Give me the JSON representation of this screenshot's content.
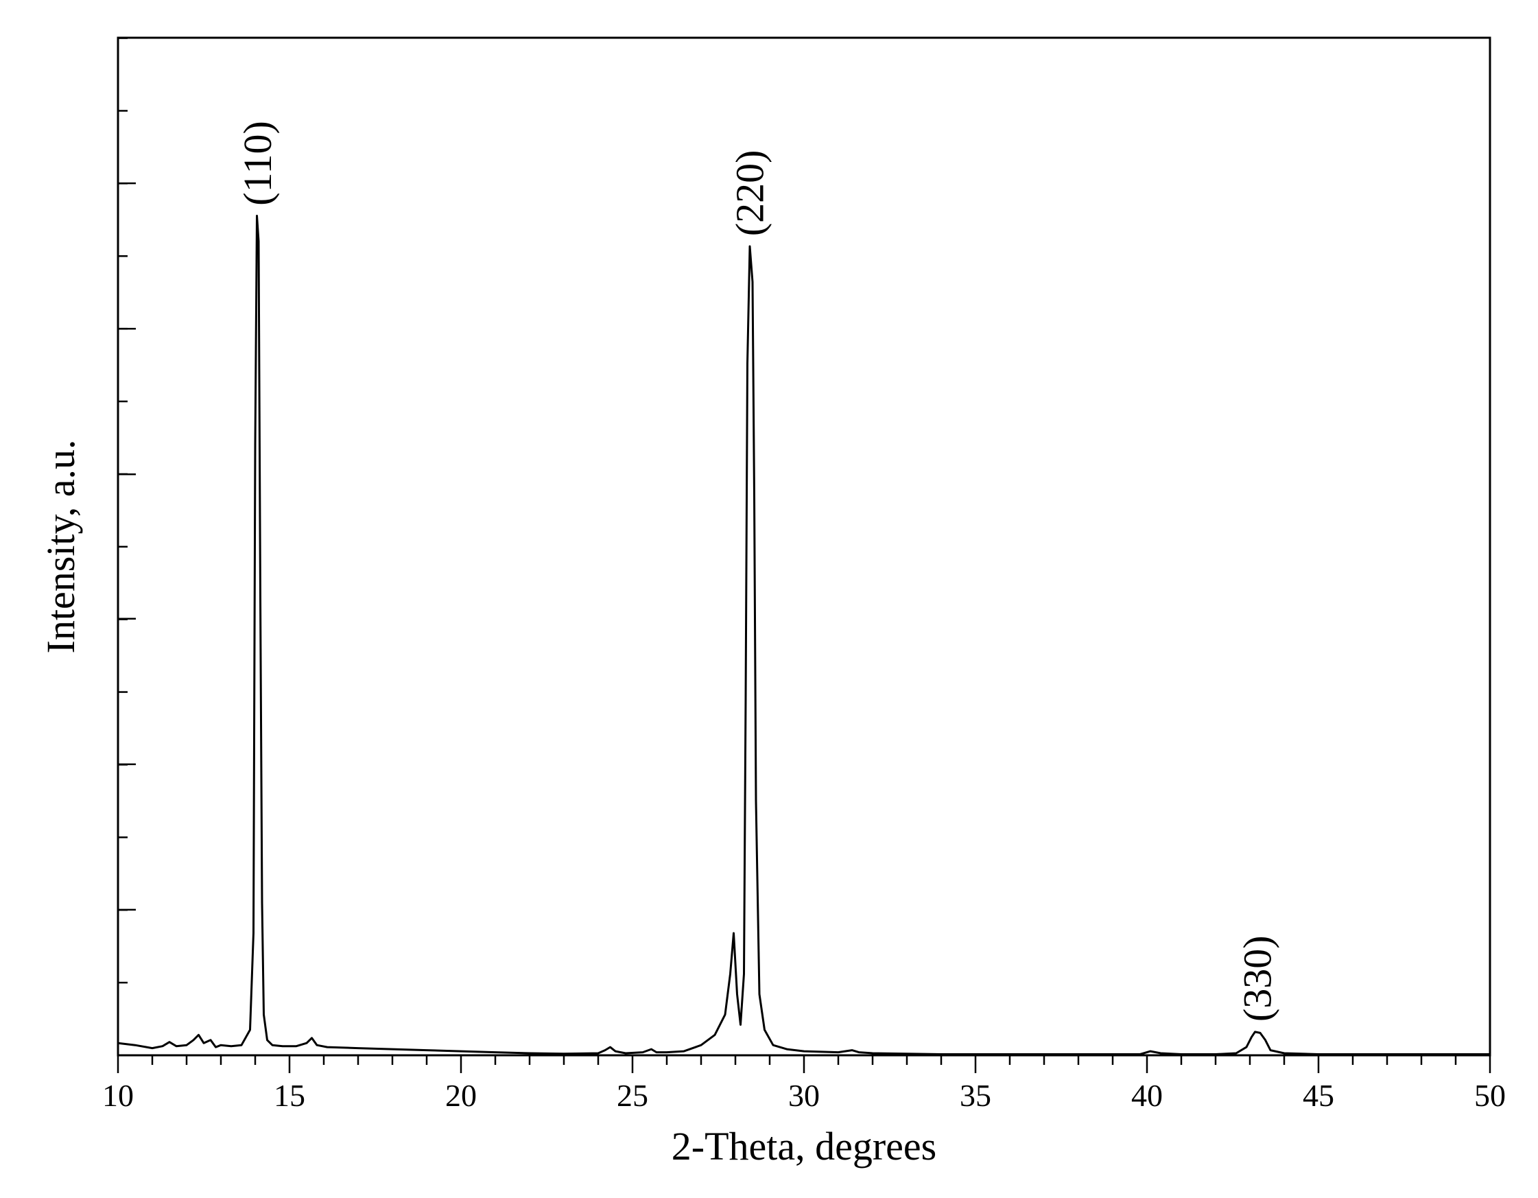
{
  "chart_data": {
    "type": "line",
    "xlabel": "2-Theta, degrees",
    "ylabel": "Intensity, a.u.",
    "xlim": [
      10,
      50
    ],
    "ylim": [
      0,
      100
    ],
    "x_ticks": [
      10,
      15,
      20,
      25,
      30,
      35,
      40,
      45,
      50
    ],
    "x_tick_labels": [
      "10",
      "15",
      "20",
      "25",
      "30",
      "35",
      "40",
      "45",
      "50"
    ],
    "x_minor_step": 1,
    "y_ticks_major": [
      14.3,
      28.6,
      42.9,
      57.1,
      71.4,
      85.7
    ],
    "y_ticks_minor_step": 7.14,
    "grid": false,
    "series": [
      {
        "x": [
          10.0,
          10.5,
          11.0,
          11.3,
          11.5,
          11.7,
          12.0,
          12.2,
          12.35,
          12.5,
          12.7,
          12.85,
          13.0,
          13.3,
          13.6,
          13.85,
          13.95,
          14.0,
          14.05,
          14.1,
          14.15,
          14.2,
          14.25,
          14.35,
          14.5,
          14.8,
          15.2,
          15.5,
          15.65,
          15.8,
          16.1,
          17.0,
          18.0,
          19.0,
          20.0,
          21.0,
          22.0,
          23.0,
          24.0,
          24.2,
          24.35,
          24.5,
          24.8,
          25.3,
          25.55,
          25.7,
          26.0,
          26.5,
          27.0,
          27.4,
          27.7,
          27.85,
          27.95,
          28.05,
          28.15,
          28.25,
          28.3,
          28.35,
          28.42,
          28.5,
          28.55,
          28.6,
          28.7,
          28.85,
          29.1,
          29.5,
          30.0,
          31.0,
          31.4,
          31.6,
          32.0,
          33.0,
          34.0,
          35.0,
          36.0,
          37.0,
          38.0,
          39.0,
          39.8,
          40.1,
          40.4,
          41.0,
          42.0,
          42.6,
          42.9,
          43.05,
          43.15,
          43.3,
          43.45,
          43.6,
          44.0,
          45.0,
          46.0,
          47.0,
          48.0,
          49.0,
          50.0
        ],
        "y": [
          1.2,
          1.0,
          0.7,
          0.9,
          1.3,
          0.9,
          1.0,
          1.5,
          2.0,
          1.2,
          1.5,
          0.8,
          1.0,
          0.9,
          1.0,
          2.5,
          12.0,
          60.0,
          82.5,
          80.0,
          45.0,
          15.0,
          4.0,
          1.5,
          1.0,
          0.9,
          0.9,
          1.2,
          1.7,
          1.0,
          0.8,
          0.7,
          0.6,
          0.5,
          0.4,
          0.3,
          0.2,
          0.15,
          0.2,
          0.5,
          0.8,
          0.4,
          0.2,
          0.3,
          0.6,
          0.3,
          0.3,
          0.4,
          1.0,
          2.0,
          4.0,
          8.0,
          12.0,
          6.0,
          3.0,
          8.0,
          35.0,
          68.0,
          79.5,
          76.0,
          55.0,
          25.0,
          6.0,
          2.5,
          1.0,
          0.6,
          0.4,
          0.3,
          0.5,
          0.3,
          0.2,
          0.15,
          0.1,
          0.1,
          0.1,
          0.1,
          0.1,
          0.1,
          0.1,
          0.4,
          0.2,
          0.1,
          0.1,
          0.2,
          0.8,
          1.8,
          2.3,
          2.2,
          1.5,
          0.5,
          0.2,
          0.1,
          0.1,
          0.1,
          0.1,
          0.1,
          0.1
        ]
      }
    ],
    "annotations": [
      {
        "text": "(110)",
        "x": 14.1,
        "y": 83.5
      },
      {
        "text": "(220)",
        "x": 28.45,
        "y": 80.5
      },
      {
        "text": "(330)",
        "x": 43.25,
        "y": 3.3
      }
    ]
  }
}
